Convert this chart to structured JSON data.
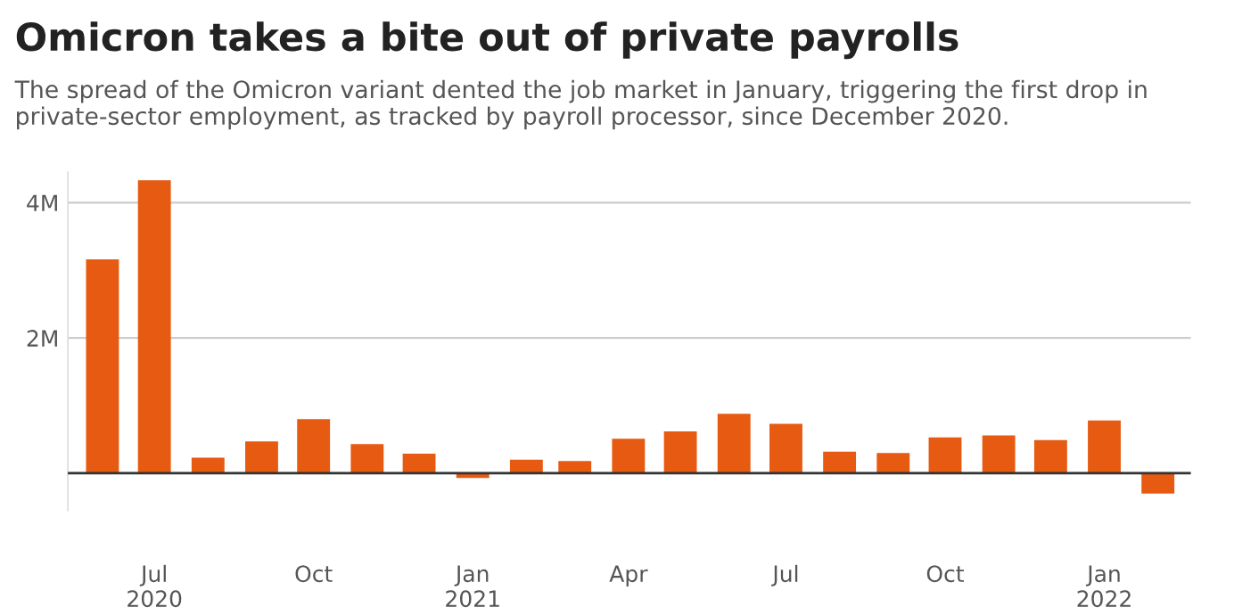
{
  "chart_data": {
    "type": "bar",
    "title": "Omicron takes a bite out of private payrolls",
    "subtitle": "The spread of the Omicron variant dented the job market in January, triggering the first drop in private-sector employment, as tracked by payroll processor, since December 2020.",
    "x": [
      "2020-06",
      "2020-07",
      "2020-08",
      "2020-09",
      "2020-10",
      "2020-11",
      "2020-12",
      "2021-01",
      "2021-02",
      "2021-03",
      "2021-04",
      "2021-05",
      "2021-06",
      "2021-07",
      "2021-08",
      "2021-09",
      "2021-10",
      "2021-11",
      "2021-12",
      "2022-01",
      "2022-02"
    ],
    "values": [
      3.16,
      4.33,
      0.23,
      0.47,
      0.8,
      0.43,
      0.29,
      -0.07,
      0.2,
      0.18,
      0.51,
      0.62,
      0.88,
      0.73,
      0.32,
      0.3,
      0.53,
      0.56,
      0.49,
      0.78,
      -0.3
    ],
    "color": "#e65a11",
    "xlim": [
      "2020-05-12",
      "2022-02-20"
    ],
    "xticks": [
      {
        "value": "2020-07",
        "label": "Jul\n2020"
      },
      {
        "value": "2020-10",
        "label": "Oct"
      },
      {
        "value": "2021-01",
        "label": "Jan\n2021"
      },
      {
        "value": "2021-04",
        "label": "Apr"
      },
      {
        "value": "2021-07",
        "label": "Jul"
      },
      {
        "value": "2021-10",
        "label": "Oct"
      },
      {
        "value": "2022-01",
        "label": "Jan\n2022"
      }
    ],
    "ylim": [
      -0.55,
      4.45
    ],
    "yticks": [
      {
        "value": 0,
        "label": null
      },
      {
        "value": 2,
        "label": "2M"
      },
      {
        "value": 4,
        "label": "4M"
      }
    ],
    "ref_lines": [
      {
        "axis": "y",
        "value": 0,
        "label": null,
        "color": "#333333"
      }
    ],
    "grid": "y",
    "legend": false
  }
}
